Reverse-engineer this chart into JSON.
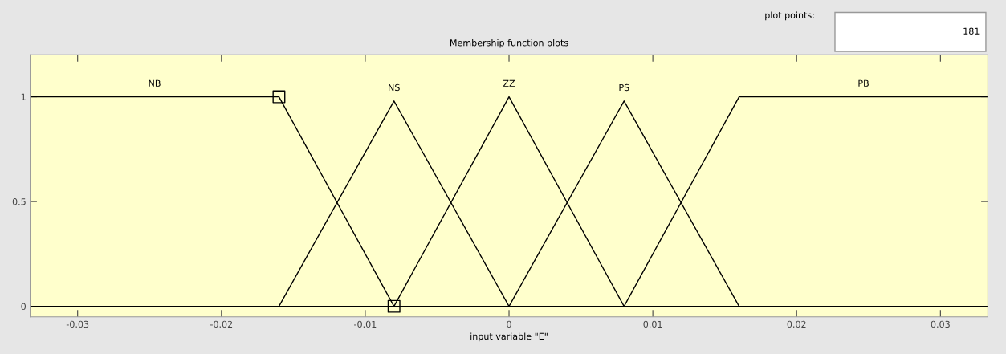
{
  "chart_data": {
    "type": "line",
    "title": "Membership function plots",
    "xlabel": "input variable \"E\"",
    "xlim": [
      -0.0333,
      0.0333
    ],
    "ylim": [
      -0.05,
      1.2
    ],
    "xticks": [
      {
        "value": -0.03,
        "label": "-0.03"
      },
      {
        "value": -0.02,
        "label": "-0.02"
      },
      {
        "value": -0.01,
        "label": "-0.01"
      },
      0,
      0.01,
      0.02,
      0.03
    ],
    "yticks": [
      0,
      0.5,
      1
    ],
    "grid": false,
    "legend": false,
    "marker": "none",
    "line_style": "solid",
    "series": [
      {
        "name": "NB",
        "color": "#000000",
        "x": [
          -0.0333,
          -0.016,
          -0.008,
          0.0333
        ],
        "values": [
          1,
          1,
          0,
          0
        ]
      },
      {
        "name": "NS",
        "color": "#000000",
        "x": [
          -0.0333,
          -0.016,
          -0.008,
          0,
          0.0333
        ],
        "values": [
          0,
          0,
          0.98,
          0,
          0
        ]
      },
      {
        "name": "ZZ",
        "color": "#000000",
        "x": [
          -0.0333,
          -0.008,
          0,
          0.008,
          0.0333
        ],
        "values": [
          0,
          0,
          1,
          0,
          0
        ]
      },
      {
        "name": "PS",
        "color": "#000000",
        "x": [
          -0.0333,
          0,
          0.008,
          0.016,
          0.0333
        ],
        "values": [
          0,
          0,
          0.98,
          0,
          0
        ]
      },
      {
        "name": "PB",
        "color": "#000000",
        "x": [
          -0.0333,
          0.008,
          0.016,
          0.0333
        ],
        "values": [
          0,
          0,
          1,
          1
        ]
      },
      {
        "type": "scatter",
        "marker": "square",
        "color": "#000000",
        "x": [
          -0.016,
          -0.008
        ],
        "values": [
          1,
          0
        ]
      }
    ],
    "annotations": [
      "plot points:",
      "181"
    ]
  }
}
